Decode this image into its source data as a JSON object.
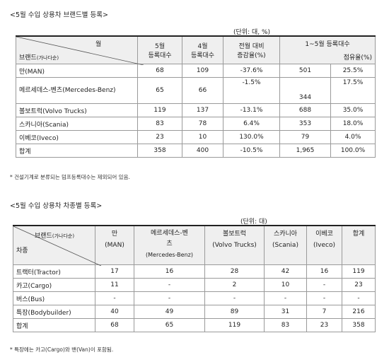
{
  "table1": {
    "title": "<5월 수입 상용차 브랜드별 등록>",
    "unit": "(단위: 대, %)",
    "corner_top": "월",
    "corner_bottom": "브랜드",
    "corner_bottom_small": "(가나다순)",
    "col_may": [
      "5월",
      "등록대수"
    ],
    "col_apr": [
      "4월",
      "등록대수"
    ],
    "col_change": [
      "전월 대비",
      "증감율(%)"
    ],
    "col_ytd": "1~5월 등록대수",
    "col_share": "점유율(%)",
    "rows": [
      {
        "brand": "만(MAN)",
        "may": "68",
        "apr": "109",
        "change": "-37.6%",
        "ytd": "501",
        "share": "25.5%"
      },
      {
        "brand": "메르세데스-벤츠(Mercedes-Benz)",
        "may": "65",
        "apr": "66",
        "change": "-1.5%",
        "ytd": "344",
        "share": "17.5%"
      },
      {
        "brand": "볼보트럭(Volvo Trucks)",
        "may": "119",
        "apr": "137",
        "change": "-13.1%",
        "ytd": "688",
        "share": "35.0%"
      },
      {
        "brand": "스카니아(Scania)",
        "may": "83",
        "apr": "78",
        "change": "6.4%",
        "ytd": "353",
        "share": "18.0%"
      },
      {
        "brand": "이베코(Iveco)",
        "may": "23",
        "apr": "10",
        "change": "130.0%",
        "ytd": "79",
        "share": "4.0%"
      },
      {
        "brand": "합계",
        "may": "358",
        "apr": "400",
        "change": "-10.5%",
        "ytd": "1,965",
        "share": "100.0%"
      }
    ],
    "note": "* 건설기계로 분류되는 덤프등록대수는 제외되어 있음."
  },
  "table2": {
    "title": "<5월 수입 상용차 차종별 등록>",
    "unit": "(단위: 대)",
    "corner_top": "브랜드",
    "corner_top_small": "(가나다순)",
    "corner_bottom": "차종",
    "headers": [
      [
        "만",
        "(MAN)"
      ],
      [
        "메르세데스-벤",
        "츠",
        "(Mercedes-Benz)"
      ],
      [
        "볼보트럭",
        "(Volvo Trucks)"
      ],
      [
        "스카니아",
        "(Scania)"
      ],
      [
        "이베코",
        "(Iveco)"
      ],
      [
        "합계"
      ]
    ],
    "rows": [
      {
        "type": "트랙터(Tractor)",
        "man": "17",
        "mb": "16",
        "volvo": "28",
        "scania": "42",
        "iveco": "16",
        "total": "119"
      },
      {
        "type": "카고(Cargo)",
        "man": "11",
        "mb": "-",
        "volvo": "2",
        "scania": "10",
        "iveco": "-",
        "total": "23"
      },
      {
        "type": "버스(Bus)",
        "man": "-",
        "mb": "-",
        "volvo": "-",
        "scania": "-",
        "iveco": "-",
        "total": "-"
      },
      {
        "type": "특장(Bodybuilder)",
        "man": "40",
        "mb": "49",
        "volvo": "89",
        "scania": "31",
        "iveco": "7",
        "total": "216"
      },
      {
        "type": "합계",
        "man": "68",
        "mb": "65",
        "volvo": "119",
        "scania": "83",
        "iveco": "23",
        "total": "358"
      }
    ],
    "note": "* 특장에는 카고(Cargo)와 밴(Van)이 포함됨."
  }
}
